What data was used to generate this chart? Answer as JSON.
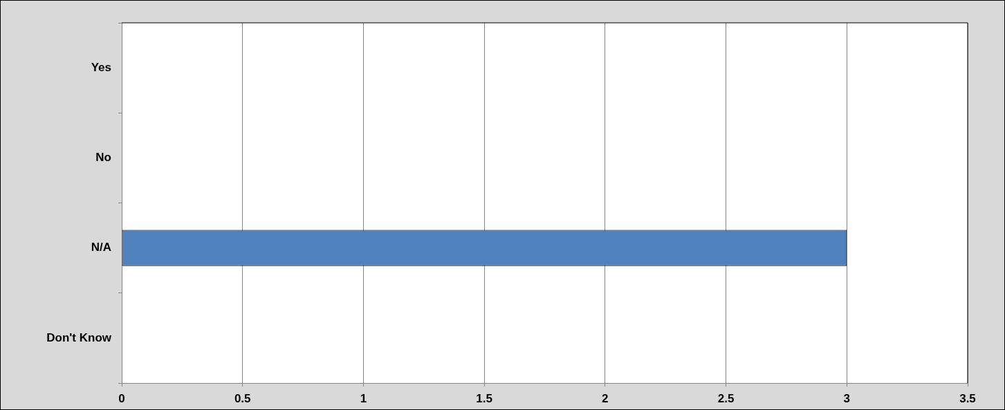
{
  "chart_data": {
    "type": "bar",
    "orientation": "horizontal",
    "categories": [
      "Yes",
      "No",
      "N/A",
      "Don't Know"
    ],
    "values": [
      0,
      0,
      3,
      0
    ],
    "color": "#4f81bd",
    "xlim": [
      0,
      3.5
    ],
    "xticks": [
      0,
      0.5,
      1,
      1.5,
      2,
      2.5,
      3,
      3.5
    ],
    "grid": "x",
    "legend": false
  }
}
